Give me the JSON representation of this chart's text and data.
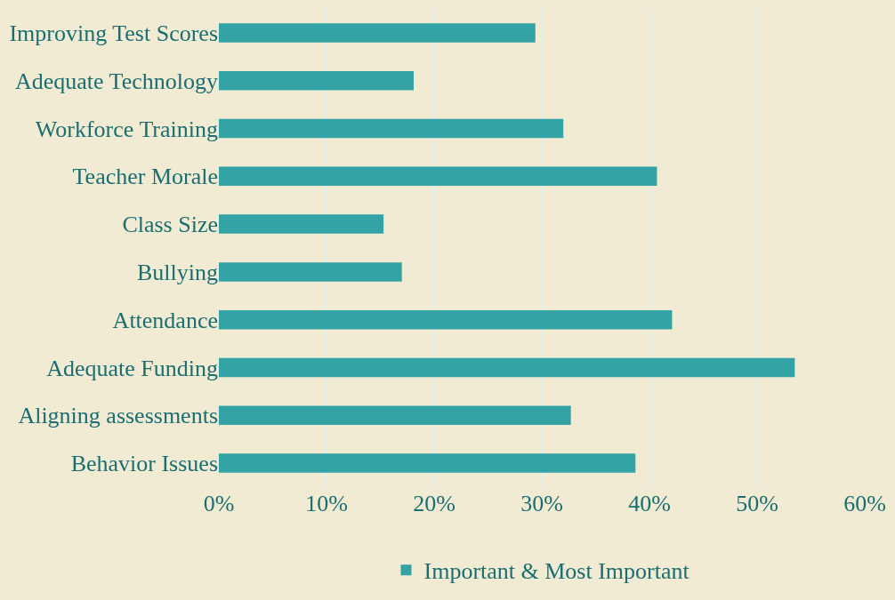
{
  "chart_data": {
    "type": "bar",
    "orientation": "horizontal",
    "categories": [
      "Improving Test Scores",
      "Adequate Technology",
      "Workforce Training",
      "Teacher Morale",
      "Class Size",
      "Bullying",
      "Attendance",
      "Adequate Funding",
      "Aligning assessments",
      "Behavior Issues"
    ],
    "series": [
      {
        "name": "Important & Most Important",
        "color": "#33a3a6",
        "values": [
          29.4,
          18.1,
          32.0,
          40.7,
          15.3,
          17.0,
          42.1,
          53.5,
          32.7,
          38.7
        ]
      }
    ],
    "xlim": [
      0,
      60
    ],
    "xticks": [
      {
        "value": 0,
        "label": "0%"
      },
      {
        "value": 10,
        "label": "10%"
      },
      {
        "value": 20,
        "label": "20%"
      },
      {
        "value": 30,
        "label": "30%"
      },
      {
        "value": 40,
        "label": "40%"
      },
      {
        "value": 50,
        "label": "50%"
      },
      {
        "value": 60,
        "label": "60%"
      }
    ],
    "grid": "x",
    "legend": "bottom"
  }
}
